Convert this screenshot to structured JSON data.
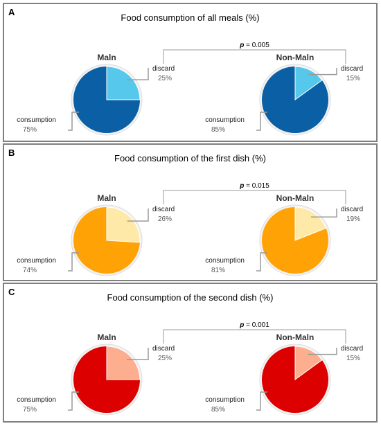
{
  "chart_data": [
    {
      "type": "pie",
      "panel_letter": "A",
      "title": "Food consumption of all meals (%)",
      "p_value_label": "p",
      "p_value_text": "= 0.005",
      "colors": {
        "consumption": "#0b5fa5",
        "discard": "#56c8ec"
      },
      "charts": [
        {
          "group": "Maln",
          "slices": [
            {
              "label": "discard",
              "value": 25,
              "text": "25%"
            },
            {
              "label": "consumption",
              "value": 75,
              "text": "75%"
            }
          ]
        },
        {
          "group": "Non-Maln",
          "slices": [
            {
              "label": "discard",
              "value": 15,
              "text": "15%"
            },
            {
              "label": "consumption",
              "value": 85,
              "text": "85%"
            }
          ]
        }
      ]
    },
    {
      "type": "pie",
      "panel_letter": "B",
      "title": "Food consumption of the first dish (%)",
      "p_value_label": "p",
      "p_value_text": "= 0.015",
      "colors": {
        "consumption": "#ffa205",
        "discard": "#ffe9a8"
      },
      "charts": [
        {
          "group": "Maln",
          "slices": [
            {
              "label": "discard",
              "value": 26,
              "text": "26%"
            },
            {
              "label": "consumption",
              "value": 74,
              "text": "74%"
            }
          ]
        },
        {
          "group": "Non-Maln",
          "slices": [
            {
              "label": "discard",
              "value": 19,
              "text": "19%"
            },
            {
              "label": "consumption",
              "value": 81,
              "text": "81%"
            }
          ]
        }
      ]
    },
    {
      "type": "pie",
      "panel_letter": "C",
      "title": "Food consumption of the second dish (%)",
      "p_value_label": "p",
      "p_value_text": "= 0.001",
      "colors": {
        "consumption": "#dc0000",
        "discard": "#fcae8e"
      },
      "charts": [
        {
          "group": "Maln",
          "slices": [
            {
              "label": "discard",
              "value": 25,
              "text": "25%"
            },
            {
              "label": "consumption",
              "value": 75,
              "text": "75%"
            }
          ]
        },
        {
          "group": "Non-Maln",
          "slices": [
            {
              "label": "discard",
              "value": 15,
              "text": "15%"
            },
            {
              "label": "consumption",
              "value": 85,
              "text": "85%"
            }
          ]
        }
      ]
    }
  ]
}
